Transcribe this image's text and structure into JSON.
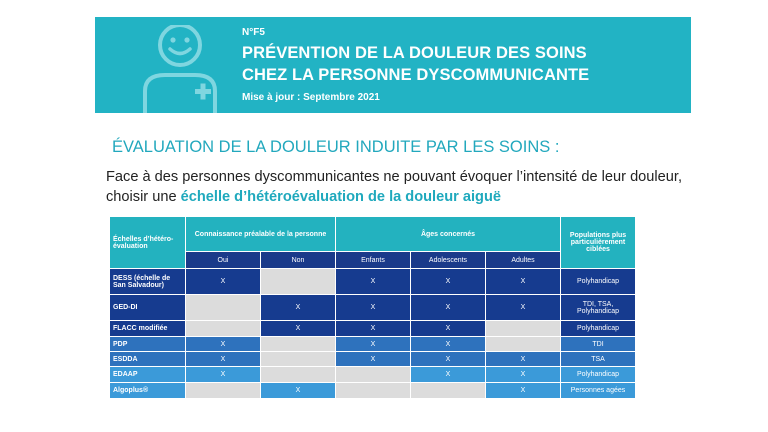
{
  "banner": {
    "number": "N°F5",
    "title_line1": "PRÉVENTION DE LA DOULEUR DES SOINS",
    "title_line2": "CHEZ LA PERSONNE DYSCOMMUNICANTE",
    "update": "Mise à jour : Septembre 2021",
    "color": "#22b3c4"
  },
  "heading": "ÉVALUATION DE LA DOULEUR INDUITE PAR LES SOINS :",
  "intro": {
    "text": "Face à des personnes dyscommunicantes ne pouvant évoquer l’intensité de leur douleur, choisir une ",
    "highlight": "échelle d’hétéroévaluation de la douleur aiguë"
  },
  "table": {
    "headers": {
      "scales": "Échelles d’hétéro-évaluation",
      "prior_knowledge": "Connaissance préalable de la personne",
      "ages": "Âges concernés",
      "populations": "Populations plus particulièrement ciblées"
    },
    "subheaders": [
      "Oui",
      "Non",
      "Enfants",
      "Adolescents",
      "Adultes"
    ],
    "rows": [
      {
        "name": "DESS (échelle de San Salvadour)",
        "cells": [
          "X",
          "",
          "X",
          "X",
          "X"
        ],
        "pop": "Polyhandicap"
      },
      {
        "name": "GED-DI",
        "cells": [
          "",
          "X",
          "X",
          "X",
          "X"
        ],
        "pop": "TDI, TSA, Polyhandicap"
      },
      {
        "name": "FLACC modifiée",
        "cells": [
          "",
          "X",
          "X",
          "X",
          ""
        ],
        "pop": "Polyhandicap"
      },
      {
        "name": "PDP",
        "cells": [
          "X",
          "",
          "X",
          "X",
          ""
        ],
        "pop": "TDI"
      },
      {
        "name": "ESDDA",
        "cells": [
          "X",
          "",
          "X",
          "X",
          "X"
        ],
        "pop": "TSA"
      },
      {
        "name": "EDAAP",
        "cells": [
          "X",
          "",
          "",
          "X",
          "X"
        ],
        "pop": "Polyhandicap"
      },
      {
        "name": "Algoplus®",
        "cells": [
          "",
          "X",
          "",
          "",
          "X"
        ],
        "pop": "Personnes agées"
      }
    ]
  }
}
